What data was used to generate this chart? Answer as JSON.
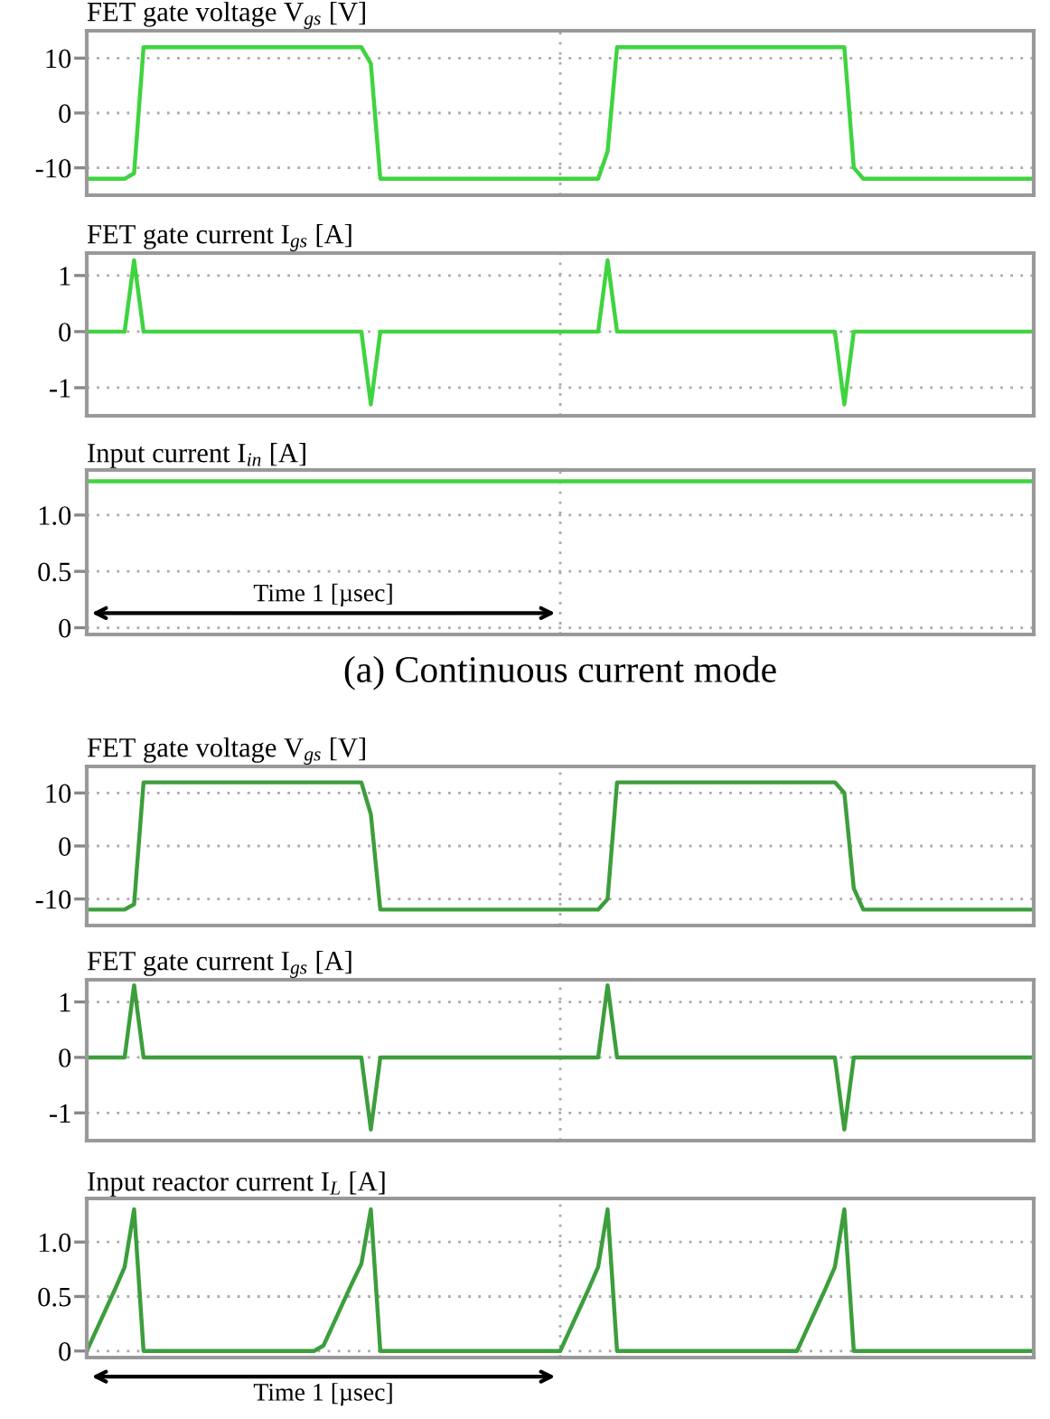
{
  "chart_data": [
    {
      "type": "line",
      "title": "FET gate voltage V$_{gs}$ [V]",
      "categories": [
        null,
        null,
        null,
        null,
        null,
        null,
        null,
        null,
        null,
        null,
        null,
        null,
        null,
        null,
        null,
        null,
        null,
        null,
        null,
        null,
        null,
        null,
        null,
        null,
        null,
        null,
        null,
        null,
        null,
        null,
        null,
        null,
        null,
        null,
        null,
        null,
        null,
        null,
        null,
        null,
        null,
        null,
        null,
        null,
        null,
        null,
        null,
        null,
        null,
        null,
        null,
        null,
        null,
        null,
        null,
        null,
        null,
        null,
        null,
        null,
        null,
        null,
        null,
        null,
        null,
        null,
        null,
        null,
        null,
        null,
        null,
        null,
        null,
        null,
        null,
        null,
        null,
        null,
        null,
        null,
        null,
        null,
        null,
        null,
        null,
        null,
        null,
        null,
        null,
        null,
        null,
        null,
        null,
        null,
        null,
        null,
        null,
        null,
        null,
        null,
        null
      ],
      "ylim": [
        -15,
        15
      ],
      "yticks": [
        {
          "value": -10,
          "label": "-10"
        },
        0,
        10
      ],
      "tick_labels": "y",
      "grid": true,
      "series": [
        {
          "color": "#3fd43f",
          "values": [
            -12,
            -12,
            -12,
            -12,
            -12,
            -11,
            12,
            12,
            12,
            12,
            12,
            12,
            12,
            12,
            12,
            12,
            12,
            12,
            12,
            12,
            12,
            12,
            12,
            12,
            12,
            12,
            12,
            12,
            12,
            12,
            9,
            -12,
            -12,
            -12,
            -12,
            -12,
            -12,
            -12,
            -12,
            -12,
            -12,
            -12,
            -12,
            -12,
            -12,
            -12,
            -12,
            -12,
            -12,
            -12,
            -12,
            -12,
            -12,
            -12,
            -12,
            -7,
            12,
            12,
            12,
            12,
            12,
            12,
            12,
            12,
            12,
            12,
            12,
            12,
            12,
            12,
            12,
            12,
            12,
            12,
            12,
            12,
            12,
            12,
            12,
            12,
            12,
            -10,
            -12,
            -12,
            -12,
            -12,
            -12,
            -12,
            -12,
            -12,
            -12,
            -12,
            -12,
            -12,
            -12,
            -12,
            -12,
            -12,
            -12,
            -12,
            -12
          ]
        }
      ]
    },
    {
      "type": "line",
      "title": "FET gate current I$_{gs}$ [A]",
      "categories": [
        null,
        null,
        null,
        null,
        null,
        null,
        null,
        null,
        null,
        null,
        null,
        null,
        null,
        null,
        null,
        null,
        null,
        null,
        null,
        null,
        null,
        null,
        null,
        null,
        null,
        null,
        null,
        null,
        null,
        null,
        null,
        null,
        null,
        null,
        null,
        null,
        null,
        null,
        null,
        null,
        null,
        null,
        null,
        null,
        null,
        null,
        null,
        null,
        null,
        null,
        null,
        null,
        null,
        null,
        null,
        null,
        null,
        null,
        null,
        null,
        null,
        null,
        null,
        null,
        null,
        null,
        null,
        null,
        null,
        null,
        null,
        null,
        null,
        null,
        null,
        null,
        null,
        null,
        null,
        null,
        null,
        null,
        null,
        null,
        null,
        null,
        null,
        null,
        null,
        null,
        null,
        null,
        null,
        null,
        null,
        null,
        null,
        null,
        null,
        null,
        null
      ],
      "ylim": [
        -1.5,
        1.4
      ],
      "yticks": [
        {
          "value": -1,
          "label": "-1"
        },
        0,
        1
      ],
      "tick_labels": "y",
      "grid": true,
      "series": [
        {
          "color": "#3fd43f",
          "values": [
            0,
            0,
            0,
            0,
            0,
            1.27,
            0,
            0,
            0,
            0,
            0,
            0,
            0,
            0,
            0,
            0,
            0,
            0,
            0,
            0,
            0,
            0,
            0,
            0,
            0,
            0,
            0,
            0,
            0,
            0,
            -1.3,
            0,
            0,
            0,
            0,
            0,
            0,
            0,
            0,
            0,
            0,
            0,
            0,
            0,
            0,
            0,
            0,
            0,
            0,
            0,
            0,
            0,
            0,
            0,
            0,
            1.27,
            0,
            0,
            0,
            0,
            0,
            0,
            0,
            0,
            0,
            0,
            0,
            0,
            0,
            0,
            0,
            0,
            0,
            0,
            0,
            0,
            0,
            0,
            0,
            0,
            -1.3,
            0,
            0,
            0,
            0,
            0,
            0,
            0,
            0,
            0,
            0,
            0,
            0,
            0,
            0,
            0,
            0,
            0,
            0,
            0,
            0
          ]
        }
      ]
    },
    {
      "type": "line",
      "title": "Input current I$_{in}$ [A]",
      "categories": [
        null,
        null,
        null
      ],
      "ylim": [
        -0.06,
        1.4
      ],
      "yticks": [
        0,
        0.5,
        {
          "value": 1,
          "label": "1.0"
        }
      ],
      "tick_labels": "y",
      "grid": true,
      "annotations": [
        "Time 1 [µsec]",
        "(a) Continuous current mode"
      ],
      "series": [
        {
          "color": "#3fd43f",
          "values": [
            1.3,
            1.3,
            1.3
          ]
        }
      ]
    },
    {
      "type": "line",
      "title": "FET gate voltage V$_{gs}$ [V]",
      "categories": [
        null,
        null,
        null,
        null,
        null,
        null,
        null,
        null,
        null,
        null,
        null,
        null,
        null,
        null,
        null,
        null,
        null,
        null,
        null,
        null,
        null,
        null,
        null,
        null,
        null,
        null,
        null,
        null,
        null,
        null,
        null,
        null,
        null,
        null,
        null,
        null,
        null,
        null,
        null,
        null,
        null,
        null,
        null,
        null,
        null,
        null,
        null,
        null,
        null,
        null,
        null,
        null,
        null,
        null,
        null,
        null,
        null,
        null,
        null,
        null,
        null,
        null,
        null,
        null,
        null,
        null,
        null,
        null,
        null,
        null,
        null,
        null,
        null,
        null,
        null,
        null,
        null,
        null,
        null,
        null,
        null,
        null,
        null,
        null,
        null,
        null,
        null,
        null,
        null,
        null,
        null,
        null,
        null,
        null,
        null,
        null,
        null,
        null,
        null,
        null,
        null
      ],
      "ylim": [
        -15,
        15
      ],
      "yticks": [
        {
          "value": -10,
          "label": "-10"
        },
        0,
        10
      ],
      "tick_labels": "y",
      "grid": true,
      "series": [
        {
          "color": "#3c9e3c",
          "values": [
            -12,
            -12,
            -12,
            -12,
            -12,
            -11,
            12,
            12,
            12,
            12,
            12,
            12,
            12,
            12,
            12,
            12,
            12,
            12,
            12,
            12,
            12,
            12,
            12,
            12,
            12,
            12,
            12,
            12,
            12,
            12,
            6,
            -12,
            -12,
            -12,
            -12,
            -12,
            -12,
            -12,
            -12,
            -12,
            -12,
            -12,
            -12,
            -12,
            -12,
            -12,
            -12,
            -12,
            -12,
            -12,
            -12,
            -12,
            -12,
            -12,
            -12,
            -10,
            12,
            12,
            12,
            12,
            12,
            12,
            12,
            12,
            12,
            12,
            12,
            12,
            12,
            12,
            12,
            12,
            12,
            12,
            12,
            12,
            12,
            12,
            12,
            12,
            10,
            -8,
            -12,
            -12,
            -12,
            -12,
            -12,
            -12,
            -12,
            -12,
            -12,
            -12,
            -12,
            -12,
            -12,
            -12,
            -12,
            -12,
            -12,
            -12,
            -12
          ]
        }
      ]
    },
    {
      "type": "line",
      "title": "FET gate current I$_{gs}$ [A]",
      "categories": [
        null,
        null,
        null,
        null,
        null,
        null,
        null,
        null,
        null,
        null,
        null,
        null,
        null,
        null,
        null,
        null,
        null,
        null,
        null,
        null,
        null,
        null,
        null,
        null,
        null,
        null,
        null,
        null,
        null,
        null,
        null,
        null,
        null,
        null,
        null,
        null,
        null,
        null,
        null,
        null,
        null,
        null,
        null,
        null,
        null,
        null,
        null,
        null,
        null,
        null,
        null,
        null,
        null,
        null,
        null,
        null,
        null,
        null,
        null,
        null,
        null,
        null,
        null,
        null,
        null,
        null,
        null,
        null,
        null,
        null,
        null,
        null,
        null,
        null,
        null,
        null,
        null,
        null,
        null,
        null,
        null,
        null,
        null,
        null,
        null,
        null,
        null,
        null,
        null,
        null,
        null,
        null,
        null,
        null,
        null,
        null,
        null,
        null,
        null,
        null,
        null
      ],
      "ylim": [
        -1.5,
        1.4
      ],
      "yticks": [
        {
          "value": -1,
          "label": "-1"
        },
        0,
        1
      ],
      "tick_labels": "y",
      "grid": true,
      "series": [
        {
          "color": "#3c9e3c",
          "values": [
            0,
            0,
            0,
            0,
            0,
            1.3,
            0,
            0,
            0,
            0,
            0,
            0,
            0,
            0,
            0,
            0,
            0,
            0,
            0,
            0,
            0,
            0,
            0,
            0,
            0,
            0,
            0,
            0,
            0,
            0,
            -1.3,
            0,
            0,
            0,
            0,
            0,
            0,
            0,
            0,
            0,
            0,
            0,
            0,
            0,
            0,
            0,
            0,
            0,
            0,
            0,
            0,
            0,
            0,
            0,
            0,
            1.3,
            0,
            0,
            0,
            0,
            0,
            0,
            0,
            0,
            0,
            0,
            0,
            0,
            0,
            0,
            0,
            0,
            0,
            0,
            0,
            0,
            0,
            0,
            0,
            0,
            -1.3,
            0,
            0,
            0,
            0,
            0,
            0,
            0,
            0,
            0,
            0,
            0,
            0,
            0,
            0,
            0,
            0,
            0,
            0,
            0,
            0
          ]
        }
      ]
    },
    {
      "type": "line",
      "title": "Input reactor current I$_{L}$ [A]",
      "categories": [
        null,
        null,
        null,
        null,
        null,
        null,
        null,
        null,
        null,
        null,
        null,
        null,
        null,
        null,
        null,
        null,
        null,
        null,
        null,
        null,
        null,
        null,
        null,
        null,
        null,
        null,
        null,
        null,
        null,
        null,
        null,
        null,
        null,
        null,
        null,
        null,
        null,
        null,
        null,
        null,
        null,
        null,
        null,
        null,
        null,
        null,
        null,
        null,
        null,
        null,
        null,
        null,
        null,
        null,
        null,
        null,
        null,
        null,
        null,
        null,
        null,
        null,
        null,
        null,
        null,
        null,
        null,
        null,
        null,
        null,
        null,
        null,
        null,
        null,
        null,
        null,
        null,
        null,
        null,
        null,
        null,
        null,
        null,
        null,
        null,
        null,
        null,
        null,
        null,
        null,
        null,
        null,
        null,
        null,
        null,
        null,
        null,
        null,
        null,
        null,
        null
      ],
      "ylim": [
        -0.06,
        1.4
      ],
      "yticks": [
        0,
        0.5,
        {
          "value": 1,
          "label": "1.0"
        }
      ],
      "tick_labels": "y",
      "grid": true,
      "annotations": [
        "Time 1 [µsec]"
      ],
      "series": [
        {
          "color": "#3c9e3c",
          "values": [
            0,
            0.19,
            0.38,
            0.57,
            0.77,
            1.3,
            0,
            0,
            0,
            0,
            0,
            0,
            0,
            0,
            0,
            0,
            0,
            0,
            0,
            0,
            0,
            0,
            0,
            0,
            0,
            0.05,
            0.24,
            0.43,
            0.62,
            0.8,
            1.3,
            0,
            0,
            0,
            0,
            0,
            0,
            0,
            0,
            0,
            0,
            0,
            0,
            0,
            0,
            0,
            0,
            0,
            0,
            0,
            0,
            0.19,
            0.38,
            0.57,
            0.77,
            1.3,
            0,
            0,
            0,
            0,
            0,
            0,
            0,
            0,
            0,
            0,
            0,
            0,
            0,
            0,
            0,
            0,
            0,
            0,
            0,
            0,
            0.19,
            0.38,
            0.57,
            0.77,
            1.3,
            0,
            0,
            0,
            0,
            0,
            0,
            0,
            0,
            0,
            0,
            0,
            0,
            0,
            0,
            0,
            0,
            0,
            0,
            0,
            0
          ]
        }
      ]
    }
  ]
}
